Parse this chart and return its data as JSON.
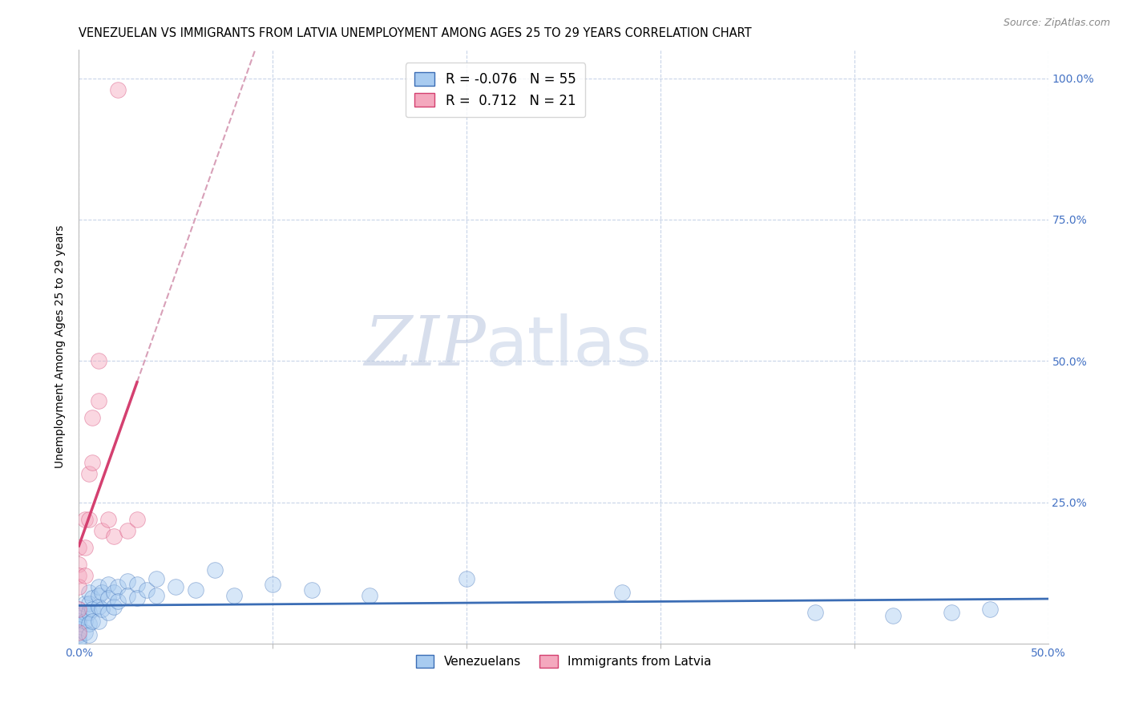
{
  "title": "VENEZUELAN VS IMMIGRANTS FROM LATVIA UNEMPLOYMENT AMONG AGES 25 TO 29 YEARS CORRELATION CHART",
  "source": "Source: ZipAtlas.com",
  "ylabel": "Unemployment Among Ages 25 to 29 years",
  "watermark_zip": "ZIP",
  "watermark_atlas": "atlas",
  "xlim": [
    0.0,
    0.5
  ],
  "ylim": [
    0.0,
    1.05
  ],
  "yticks": [
    0.25,
    0.5,
    0.75,
    1.0
  ],
  "ytick_labels": [
    "25.0%",
    "50.0%",
    "75.0%",
    "100.0%"
  ],
  "xtick_left": 0.0,
  "xtick_right": 0.5,
  "xtick_left_label": "0.0%",
  "xtick_right_label": "50.0%",
  "series1_color": "#A8CBF0",
  "series2_color": "#F4A8BE",
  "trendline1_color": "#3B6DB5",
  "trendline2_color": "#D44070",
  "trendline_dash_color": "#D8A0B8",
  "legend_r1": "-0.076",
  "legend_n1": "55",
  "legend_r2": "0.712",
  "legend_n2": "21",
  "venezuelans_x": [
    0.0,
    0.0,
    0.0,
    0.0,
    0.0,
    0.0,
    0.0,
    0.0,
    0.0,
    0.0,
    0.003,
    0.003,
    0.003,
    0.003,
    0.005,
    0.005,
    0.005,
    0.005,
    0.005,
    0.007,
    0.007,
    0.007,
    0.01,
    0.01,
    0.01,
    0.01,
    0.012,
    0.012,
    0.015,
    0.015,
    0.015,
    0.018,
    0.018,
    0.02,
    0.02,
    0.025,
    0.025,
    0.03,
    0.03,
    0.035,
    0.04,
    0.04,
    0.05,
    0.06,
    0.07,
    0.08,
    0.1,
    0.12,
    0.15,
    0.2,
    0.28,
    0.38,
    0.42,
    0.45,
    0.47
  ],
  "venezuelans_y": [
    0.06,
    0.055,
    0.05,
    0.045,
    0.04,
    0.035,
    0.025,
    0.015,
    0.008,
    0.003,
    0.07,
    0.055,
    0.04,
    0.02,
    0.09,
    0.07,
    0.055,
    0.035,
    0.015,
    0.08,
    0.06,
    0.04,
    0.1,
    0.085,
    0.065,
    0.04,
    0.09,
    0.06,
    0.105,
    0.08,
    0.055,
    0.09,
    0.065,
    0.1,
    0.075,
    0.11,
    0.085,
    0.105,
    0.08,
    0.095,
    0.115,
    0.085,
    0.1,
    0.095,
    0.13,
    0.085,
    0.105,
    0.095,
    0.085,
    0.115,
    0.09,
    0.055,
    0.05,
    0.055,
    0.06
  ],
  "latvia_x": [
    0.0,
    0.0,
    0.0,
    0.0,
    0.0,
    0.0,
    0.003,
    0.003,
    0.003,
    0.005,
    0.005,
    0.007,
    0.007,
    0.01,
    0.01,
    0.012,
    0.015,
    0.018,
    0.02,
    0.025,
    0.03
  ],
  "latvia_y": [
    0.17,
    0.14,
    0.12,
    0.1,
    0.06,
    0.02,
    0.22,
    0.17,
    0.12,
    0.3,
    0.22,
    0.4,
    0.32,
    0.5,
    0.43,
    0.2,
    0.22,
    0.19,
    0.98,
    0.2,
    0.22
  ],
  "marker_size": 200,
  "alpha": 0.45,
  "background_color": "#FFFFFF",
  "grid_color": "#C8D4E8",
  "title_fontsize": 10.5,
  "axis_label_fontsize": 10,
  "tick_fontsize": 10,
  "right_tick_color": "#4472C4",
  "bottom_tick_color": "#4472C4"
}
